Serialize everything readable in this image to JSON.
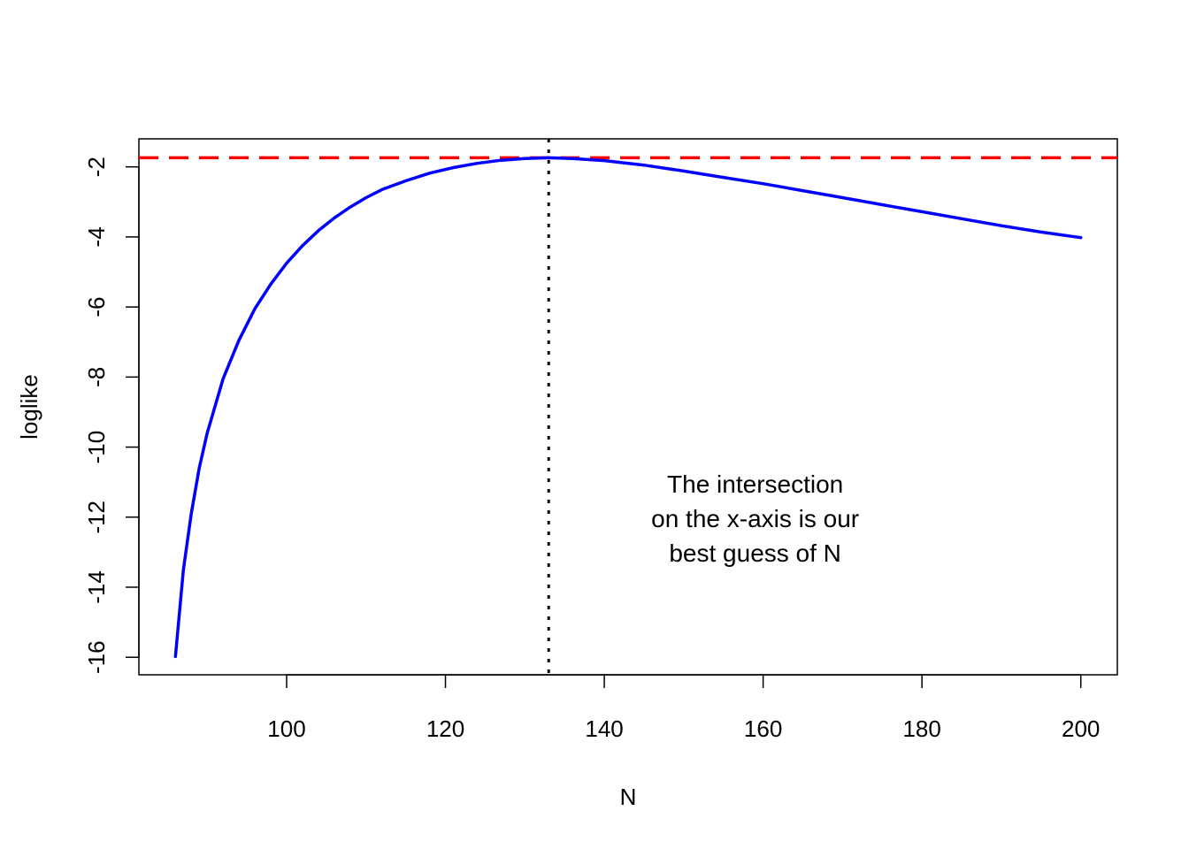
{
  "chart_data": {
    "type": "line",
    "xlabel": "N",
    "ylabel": "loglike",
    "xlim": [
      81.4,
      204.6
    ],
    "ylim": [
      -16.5,
      -1.2
    ],
    "x_ticks": [
      100,
      120,
      140,
      160,
      180,
      200
    ],
    "x_tick_labels": [
      "100",
      "120",
      "140",
      "160",
      "180",
      "200"
    ],
    "y_ticks": [
      -16,
      -14,
      -12,
      -10,
      -8,
      -6,
      -4,
      -2
    ],
    "y_tick_labels": [
      "-16",
      "-14",
      "-12",
      "-10",
      "-8",
      "-6",
      "-4",
      "-2"
    ],
    "grid": false,
    "series": [
      {
        "color": "#0000ff",
        "x": [
          86,
          87,
          88,
          89,
          90,
          92,
          94,
          96,
          98,
          100,
          102,
          104,
          106,
          108,
          110,
          112,
          115,
          118,
          121,
          124,
          127,
          130,
          133,
          136,
          140,
          145,
          150,
          155,
          160,
          165,
          170,
          175,
          180,
          185,
          190,
          195,
          200
        ],
        "y": [
          -15.98,
          -13.5,
          -11.9,
          -10.6,
          -9.6,
          -8.05,
          -6.95,
          -6.05,
          -5.35,
          -4.75,
          -4.25,
          -3.82,
          -3.46,
          -3.15,
          -2.88,
          -2.65,
          -2.4,
          -2.18,
          -2.02,
          -1.9,
          -1.81,
          -1.76,
          -1.74,
          -1.76,
          -1.82,
          -1.95,
          -2.12,
          -2.3,
          -2.48,
          -2.68,
          -2.88,
          -3.08,
          -3.28,
          -3.48,
          -3.68,
          -3.86,
          -4.02
        ]
      }
    ],
    "reference_lines": [
      {
        "orientation": "horizontal",
        "value": -1.74,
        "color": "#ff0000",
        "style": "dashed"
      },
      {
        "orientation": "vertical",
        "value": 133,
        "color": "#000000",
        "style": "dotted"
      }
    ],
    "annotation": {
      "lines": [
        "The intersection",
        "on the x-axis is our",
        "best guess of N"
      ],
      "x": 159,
      "y": -12.05
    }
  }
}
